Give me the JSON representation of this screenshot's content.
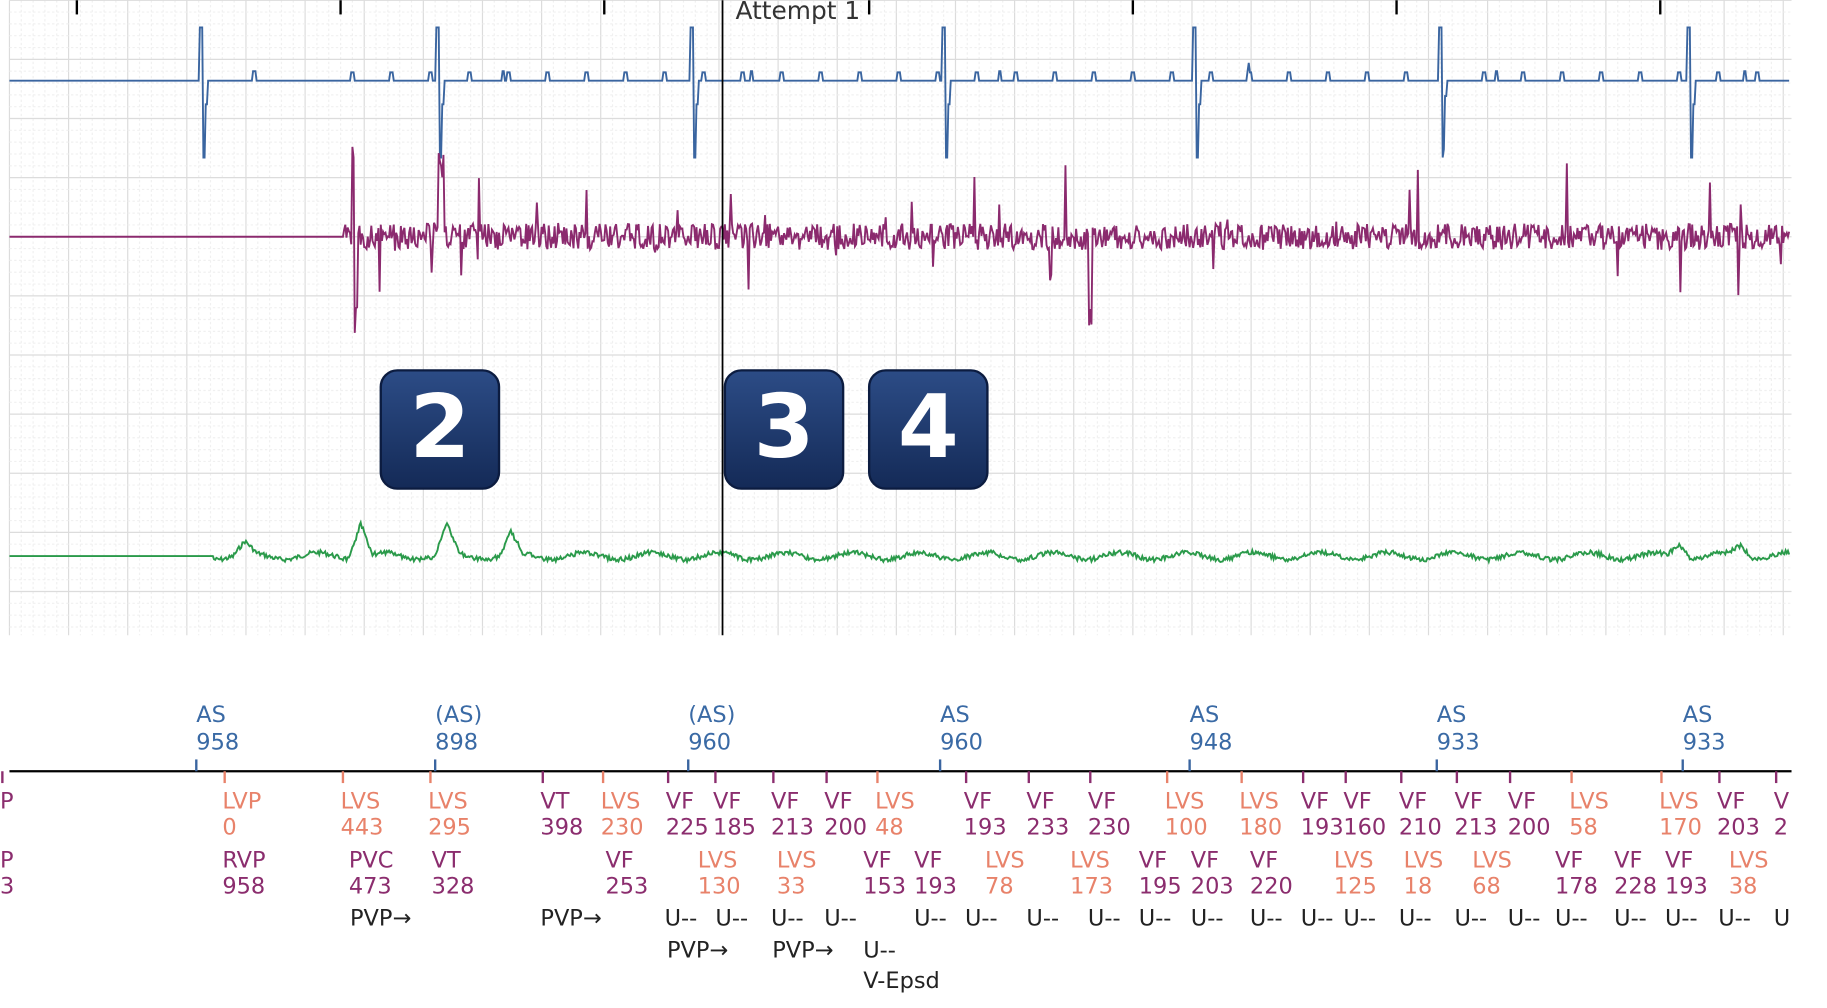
{
  "title": "Attempt 1",
  "badges": [
    "2",
    "3",
    "4"
  ],
  "atrial_markers": [
    {
      "label": "AS",
      "interval": 958
    },
    {
      "label": "(AS)",
      "interval": 898
    },
    {
      "label": "(AS)",
      "interval": 960
    },
    {
      "label": "AS",
      "interval": 960
    },
    {
      "label": "AS",
      "interval": 948
    },
    {
      "label": "AS",
      "interval": 933
    },
    {
      "label": "AS",
      "interval": 933
    }
  ],
  "ventricular_row1": [
    {
      "label": "P"
    },
    {
      "label": "LVP",
      "interval": 0
    },
    {
      "label": "LVS",
      "interval": 443
    },
    {
      "label": "LVS",
      "interval": 295
    },
    {
      "label": "VT",
      "interval": 398
    },
    {
      "label": "LVS",
      "interval": 230
    },
    {
      "label": "VF",
      "interval": 225
    },
    {
      "label": "VF",
      "interval": 185
    },
    {
      "label": "VF",
      "interval": 213
    },
    {
      "label": "VF",
      "interval": 200
    },
    {
      "label": "LVS",
      "interval": 48
    },
    {
      "label": "VF",
      "interval": 193
    },
    {
      "label": "VF",
      "interval": 233
    },
    {
      "label": "VF",
      "interval": 230
    },
    {
      "label": "LVS",
      "interval": 100
    },
    {
      "label": "LVS",
      "interval": 180
    },
    {
      "label": "VF",
      "interval": 193
    },
    {
      "label": "VF",
      "interval": 160
    },
    {
      "label": "VF",
      "interval": 210
    },
    {
      "label": "VF",
      "interval": 213
    },
    {
      "label": "VF",
      "interval": 200
    },
    {
      "label": "LVS",
      "interval": 58
    },
    {
      "label": "LVS",
      "interval": 170
    },
    {
      "label": "VF",
      "interval": 203
    },
    {
      "label": "V",
      "interval": 2
    }
  ],
  "ventricular_row2": [
    {
      "label": "P",
      "interval": 3
    },
    {
      "label": "RVP",
      "interval": 958
    },
    {
      "label": "PVC",
      "interval": 473
    },
    {
      "label": "VT",
      "interval": 328
    },
    {
      "label": "VF",
      "interval": 253
    },
    {
      "label": "LVS",
      "interval": 130
    },
    {
      "label": "LVS",
      "interval": 33
    },
    {
      "label": "VF",
      "interval": 153
    },
    {
      "label": "VF",
      "interval": 193
    },
    {
      "label": "LVS",
      "interval": 78
    },
    {
      "label": "LVS",
      "interval": 173
    },
    {
      "label": "VF",
      "interval": 195
    },
    {
      "label": "VF",
      "interval": 203
    },
    {
      "label": "VF",
      "interval": 220
    },
    {
      "label": "LVS",
      "interval": 125
    },
    {
      "label": "LVS",
      "interval": 18
    },
    {
      "label": "LVS",
      "interval": 68
    },
    {
      "label": "VF",
      "interval": 178
    },
    {
      "label": "VF",
      "interval": 228
    },
    {
      "label": "VF",
      "interval": 193
    },
    {
      "label": "LVS",
      "interval": 38
    }
  ],
  "row3": [
    "PVP→",
    "PVP→",
    "U--",
    "U--",
    "U--",
    "U--",
    "U--",
    "U--",
    "U--",
    "U--",
    "U--",
    "U--",
    "U--",
    "U--",
    "U--",
    "U--",
    "U--",
    "U--",
    "U--",
    "U--",
    "U--",
    "U--",
    "U"
  ],
  "row4": [
    "PVP→",
    "PVP→",
    "U--"
  ],
  "row5": [
    "V-Epsd"
  ]
}
